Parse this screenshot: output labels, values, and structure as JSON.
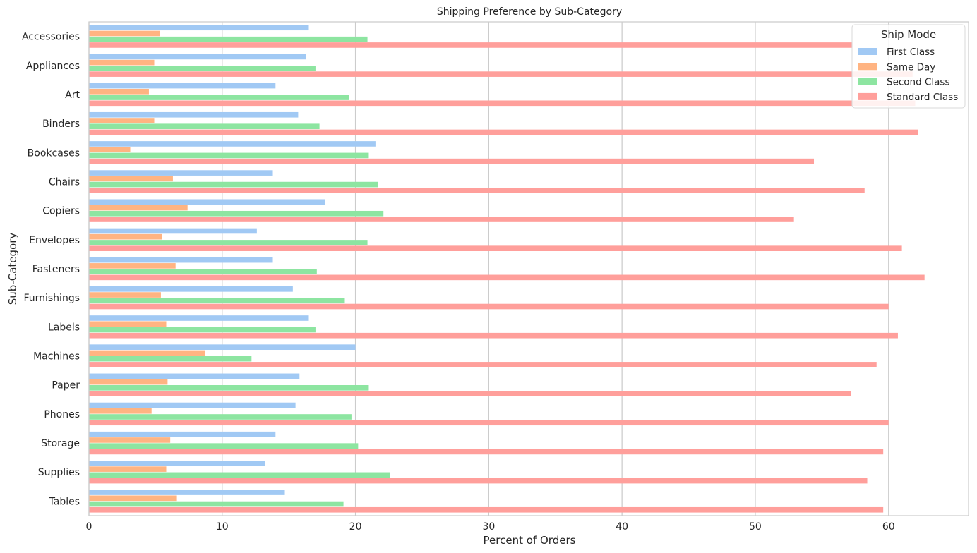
{
  "chart_data": {
    "type": "bar",
    "orientation": "horizontal",
    "title": "Shipping Preference by Sub-Category",
    "xlabel": "Percent of Orders",
    "ylabel": "Sub-Category",
    "xlim": [
      0,
      66
    ],
    "xticks": [
      0,
      10,
      20,
      30,
      40,
      50,
      60
    ],
    "grid": "vertical",
    "legend": {
      "title": "Ship Mode",
      "placement": "top-right"
    },
    "categories": [
      "Accessories",
      "Appliances",
      "Art",
      "Binders",
      "Bookcases",
      "Chairs",
      "Copiers",
      "Envelopes",
      "Fasteners",
      "Furnishings",
      "Labels",
      "Machines",
      "Paper",
      "Phones",
      "Storage",
      "Supplies",
      "Tables"
    ],
    "series": [
      {
        "name": "First Class",
        "color": "#a1c9f4",
        "values": [
          16.5,
          16.3,
          14.0,
          15.7,
          21.5,
          13.8,
          17.7,
          12.6,
          13.8,
          15.3,
          16.5,
          20.0,
          15.8,
          15.5,
          14.0,
          13.2,
          14.7
        ]
      },
      {
        "name": "Same Day",
        "color": "#ffb482",
        "values": [
          5.3,
          4.9,
          4.5,
          4.9,
          3.1,
          6.3,
          7.4,
          5.5,
          6.5,
          5.4,
          5.8,
          8.7,
          5.9,
          4.7,
          6.1,
          5.8,
          6.6
        ]
      },
      {
        "name": "Second Class",
        "color": "#8de5a1",
        "values": [
          20.9,
          17.0,
          19.5,
          17.3,
          21.0,
          21.7,
          22.1,
          20.9,
          17.1,
          19.2,
          17.0,
          12.2,
          21.0,
          19.7,
          20.2,
          22.6,
          19.1
        ]
      },
      {
        "name": "Standard Class",
        "color": "#ff9f9b",
        "values": [
          57.3,
          61.8,
          62.0,
          62.2,
          54.4,
          58.2,
          52.9,
          61.0,
          62.7,
          60.0,
          60.7,
          59.1,
          57.2,
          60.0,
          59.6,
          58.4,
          59.6
        ]
      }
    ]
  }
}
